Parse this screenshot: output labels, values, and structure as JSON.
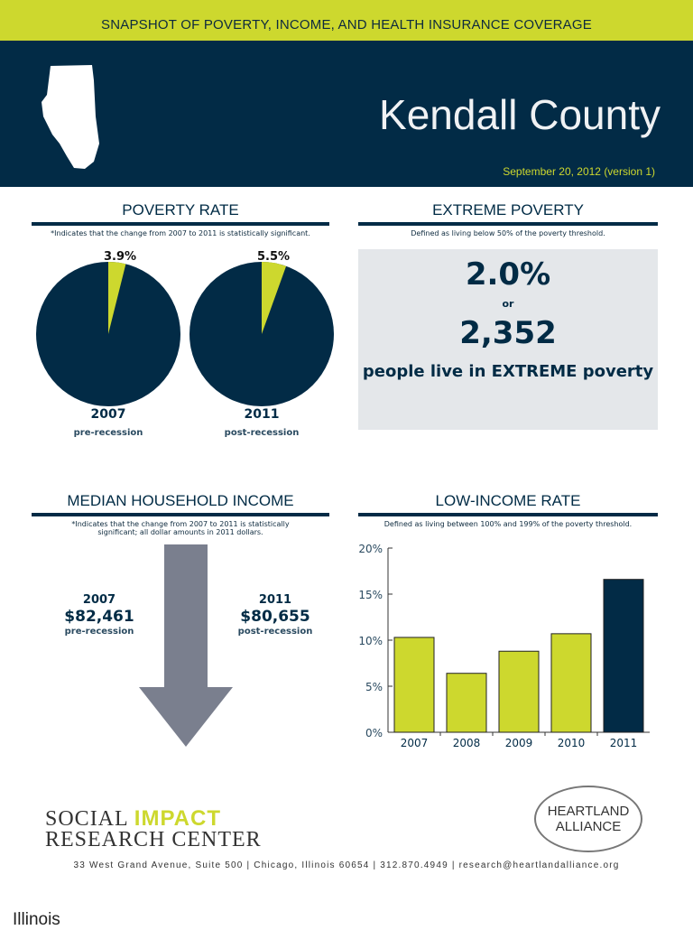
{
  "header": {
    "tagline": "SNAPSHOT OF POVERTY, INCOME, AND HEALTH INSURANCE COVERAGE",
    "title": "Kendall County",
    "date": "September 20, 2012 (version 1)",
    "state_icon": "illinois-map-icon"
  },
  "poverty": {
    "heading": "POVERTY RATE",
    "note": "*Indicates that the change from 2007 to 2011 is statistically significant."
  },
  "extreme": {
    "heading": "EXTREME POVERTY",
    "note": "Defined as living below 50% of the poverty threshold.",
    "percent": "2.0%",
    "or": "or",
    "count": "2,352",
    "caption": "people live in EXTREME poverty"
  },
  "income": {
    "heading": "MEDIAN HOUSEHOLD INCOME",
    "note": "*Indicates that the change from 2007 to 2011 is statistically significant; all dollar amounts in 2011 dollars.",
    "left": {
      "year": "2007",
      "value": "$82,461",
      "sub": "pre-recession"
    },
    "right": {
      "year": "2011",
      "value": "$80,655",
      "sub": "post-recession"
    },
    "arrow": "down-arrow-icon"
  },
  "lowincome": {
    "heading": "LOW-INCOME RATE",
    "note": "Defined as living between 100% and 199% of the poverty threshold."
  },
  "colors": {
    "navy": "#022b46",
    "lime": "#cdd82e",
    "arrow": "#7a7f8e"
  },
  "chart_data": [
    {
      "type": "pie",
      "title": "POVERTY RATE",
      "slices": [
        {
          "year": "2007",
          "sub": "pre-recession",
          "value": 3.9,
          "label": "3.9%"
        },
        {
          "year": "2011",
          "sub": "post-recession",
          "value": 5.5,
          "label": "5.5%"
        }
      ]
    },
    {
      "type": "bar",
      "title": "LOW-INCOME RATE",
      "categories": [
        "2007",
        "2008",
        "2009",
        "2010",
        "2011"
      ],
      "values": [
        10.3,
        6.4,
        8.8,
        10.7,
        16.6
      ],
      "ylim": [
        0,
        20
      ],
      "yticks": [
        "0%",
        "5%",
        "10%",
        "15%",
        "20%"
      ],
      "grid": false,
      "highlight": "2011"
    }
  ],
  "footer": {
    "org1_line1a": "SOCIAL ",
    "org1_line1b": "IMPACT",
    "org1_line2": "RESEARCH CENTER",
    "org2_line1": "HEARTLAND",
    "org2_line2": "ALLIANCE",
    "address": "33 West Grand Avenue, Suite 500 | Chicago, Illinois 60654 | 312.870.4949 | research@heartlandalliance.org"
  },
  "next_page": "Illinois"
}
